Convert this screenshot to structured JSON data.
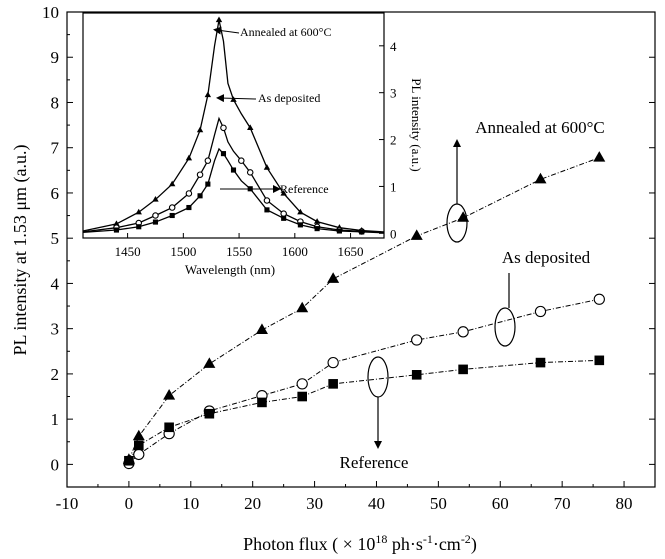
{
  "chart_data": [
    {
      "type": "scatter",
      "title": "",
      "xlabel": "Photon flux ( × 10",
      "xlabel_sup": "18",
      "xlabel_tail": " ph·s",
      "xlabel_sup2": "-1",
      "xlabel_tail2": "·cm",
      "xlabel_sup3": "-2",
      "xlabel_end": ")",
      "ylabel": "PL intensity at 1.53 μm (a.u.)",
      "xlim": [
        -10,
        85
      ],
      "ylim": [
        -0.5,
        10
      ],
      "xticks": [
        "-10",
        "0",
        "10",
        "20",
        "30",
        "40",
        "50",
        "60",
        "70",
        "80"
      ],
      "yticks": [
        "0",
        "1",
        "2",
        "3",
        "4",
        "5",
        "6",
        "7",
        "8",
        "9",
        "10"
      ],
      "series": [
        {
          "name": "Annealed at 600°C",
          "marker": "triangle",
          "x": [
            0,
            1.6,
            6.5,
            13,
            21.5,
            28,
            33,
            46.5,
            54,
            66.5,
            76
          ],
          "y": [
            0.1,
            0.62,
            1.52,
            2.22,
            2.97,
            3.45,
            4.1,
            5.05,
            5.45,
            6.3,
            6.78
          ]
        },
        {
          "name": "As deposited",
          "marker": "open-circle",
          "x": [
            0,
            1.6,
            6.5,
            13,
            21.5,
            28,
            33,
            46.5,
            54,
            66.5,
            76
          ],
          "y": [
            0.02,
            0.22,
            0.68,
            1.18,
            1.52,
            1.78,
            2.25,
            2.75,
            2.93,
            3.38,
            3.65
          ]
        },
        {
          "name": "Reference",
          "marker": "square",
          "x": [
            0,
            1.6,
            6.5,
            13,
            21.5,
            28,
            33,
            46.5,
            54,
            66.5,
            76
          ],
          "y": [
            0.08,
            0.42,
            0.82,
            1.12,
            1.37,
            1.5,
            1.78,
            1.98,
            2.1,
            2.25,
            2.3
          ]
        }
      ],
      "annotations": [
        "Annealed at 600°C",
        "As deposited",
        "Reference"
      ]
    },
    {
      "type": "line",
      "title": "",
      "xlabel": "Wavelength (nm)",
      "ylabel": "PL intensity (a.u.)",
      "xlim": [
        1410,
        1680
      ],
      "ylim": [
        -0.1,
        4.7
      ],
      "xticks": [
        "1450",
        "1500",
        "1550",
        "1600",
        "1650"
      ],
      "yticks": [
        "0",
        "1",
        "2",
        "3",
        "4"
      ],
      "series": [
        {
          "name": "Annealed at 600°C",
          "marker": "triangle",
          "x": [
            1410,
            1440,
            1460,
            1475,
            1490,
            1505,
            1515,
            1522,
            1528,
            1532,
            1536,
            1540,
            1545,
            1552,
            1560,
            1575,
            1590,
            1605,
            1620,
            1640,
            1660,
            1680
          ],
          "y": [
            0.05,
            0.2,
            0.45,
            0.72,
            1.05,
            1.6,
            2.2,
            2.95,
            4.0,
            4.55,
            4.1,
            3.2,
            2.85,
            2.55,
            2.25,
            1.4,
            0.85,
            0.45,
            0.25,
            0.12,
            0.06,
            0.03
          ],
          "marker_x": [
            1440,
            1460,
            1475,
            1490,
            1505,
            1515,
            1522,
            1532,
            1545,
            1560,
            1575,
            1590,
            1605,
            1620,
            1640,
            1660
          ],
          "marker_y": [
            0.2,
            0.45,
            0.72,
            1.05,
            1.6,
            2.2,
            2.95,
            4.55,
            2.85,
            2.25,
            1.4,
            0.85,
            0.45,
            0.25,
            0.12,
            0.06
          ]
        },
        {
          "name": "As deposited",
          "marker": "open-circle",
          "x": [
            1410,
            1440,
            1460,
            1475,
            1490,
            1505,
            1515,
            1522,
            1528,
            1532,
            1536,
            1540,
            1545,
            1552,
            1560,
            1575,
            1590,
            1605,
            1620,
            1640,
            1660,
            1680
          ],
          "y": [
            0.03,
            0.12,
            0.22,
            0.38,
            0.55,
            0.85,
            1.25,
            1.55,
            2.1,
            2.45,
            2.25,
            1.95,
            1.75,
            1.55,
            1.3,
            0.7,
            0.42,
            0.25,
            0.14,
            0.07,
            0.04,
            0.02
          ],
          "marker_x": [
            1440,
            1460,
            1475,
            1490,
            1505,
            1515,
            1522,
            1536,
            1552,
            1560,
            1575,
            1590,
            1605,
            1620,
            1640,
            1660
          ],
          "marker_y": [
            0.12,
            0.22,
            0.38,
            0.55,
            0.85,
            1.25,
            1.55,
            2.25,
            1.55,
            1.3,
            0.7,
            0.42,
            0.25,
            0.14,
            0.07,
            0.04
          ]
        },
        {
          "name": "Reference",
          "marker": "square",
          "x": [
            1410,
            1440,
            1460,
            1475,
            1490,
            1505,
            1515,
            1522,
            1528,
            1532,
            1536,
            1540,
            1545,
            1552,
            1560,
            1575,
            1590,
            1605,
            1620,
            1640,
            1660,
            1680
          ],
          "y": [
            0.02,
            0.07,
            0.14,
            0.24,
            0.38,
            0.55,
            0.8,
            1.05,
            1.55,
            1.8,
            1.7,
            1.55,
            1.35,
            1.12,
            0.95,
            0.5,
            0.32,
            0.18,
            0.1,
            0.05,
            0.03,
            0.01
          ],
          "marker_x": [
            1440,
            1460,
            1475,
            1490,
            1505,
            1515,
            1522,
            1536,
            1545,
            1560,
            1575,
            1590,
            1605,
            1620,
            1640,
            1660
          ],
          "marker_y": [
            0.07,
            0.14,
            0.24,
            0.38,
            0.55,
            0.8,
            1.05,
            1.7,
            1.35,
            0.95,
            0.5,
            0.32,
            0.18,
            0.1,
            0.05,
            0.03
          ]
        }
      ],
      "annotations": [
        "Annealed at 600°C",
        "As deposited",
        "Reference"
      ]
    }
  ]
}
